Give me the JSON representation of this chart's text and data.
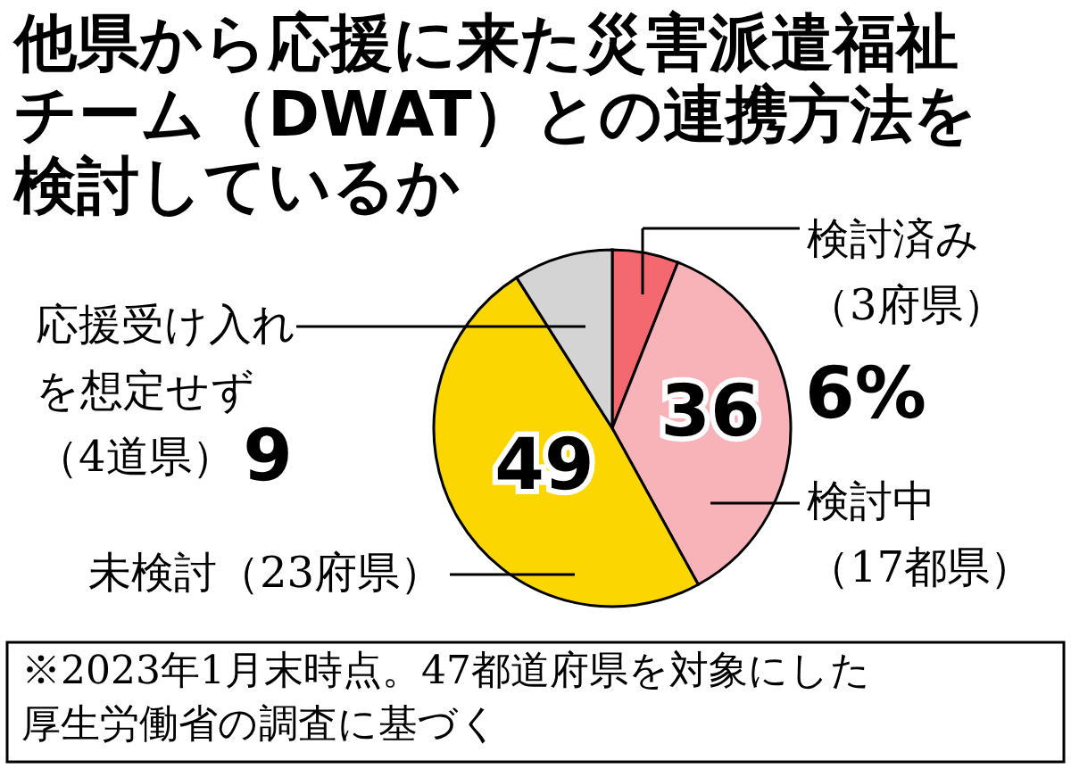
{
  "chart_data": {
    "type": "pie",
    "title": "他県から応援に来た災害派遣福祉チーム（DWAT）との連携方法を検討しているか",
    "categories": [
      "検討済み（3府県）",
      "検討中（17都県）",
      "未検討（23府県）",
      "応援受け入れを想定せず（4道県）"
    ],
    "values": [
      6,
      36,
      49,
      9
    ],
    "value_labels": [
      "6%",
      "36",
      "49",
      "9"
    ],
    "colors": [
      "#f46870",
      "#f7b3b8",
      "#fcd600",
      "#d4d4d4"
    ],
    "annotations": [
      "※2023年1月末時点。47都道府県を対象にした厚生労働省の調査に基づく"
    ]
  }
}
